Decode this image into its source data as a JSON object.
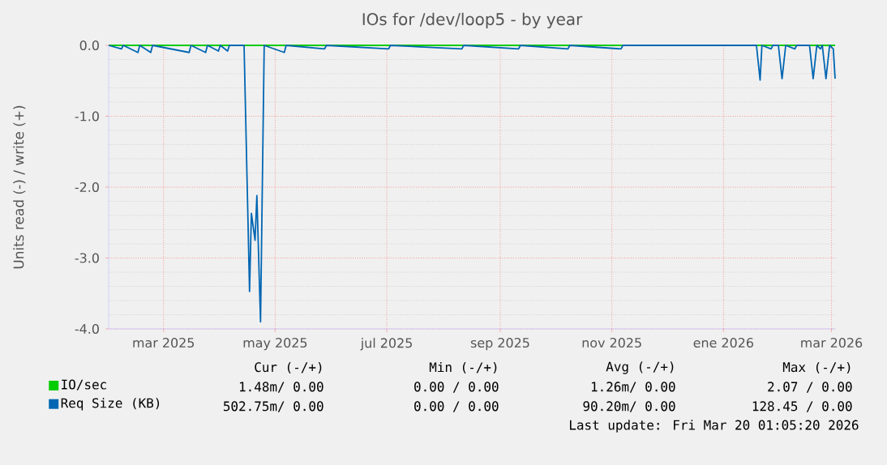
{
  "chart_data": {
    "type": "line",
    "title": "IOs for /dev/loop5 - by year",
    "ylabel": "Units read (-) / write (+)",
    "xlim": [
      "2025-01-30",
      "2026-03-03"
    ],
    "xticks": [
      {
        "value": "2025-03-01",
        "label": "mar 2025"
      },
      {
        "value": "2025-05-01",
        "label": "may 2025"
      },
      {
        "value": "2025-07-01",
        "label": "jul 2025"
      },
      {
        "value": "2025-09-01",
        "label": "sep 2025"
      },
      {
        "value": "2025-11-01",
        "label": "nov 2025"
      },
      {
        "value": "2026-01-01",
        "label": "ene 2026"
      },
      {
        "value": "2026-03-01",
        "label": "mar 2026"
      }
    ],
    "ylim": [
      -4,
      0
    ],
    "yticks": [
      {
        "value": -4,
        "label": "-4.0"
      },
      {
        "value": -3,
        "label": "-3.0"
      },
      {
        "value": -2,
        "label": "-2.0"
      },
      {
        "value": -1,
        "label": "-1.0"
      },
      {
        "value": 0,
        "label": "0.0"
      }
    ],
    "grid": true,
    "legend": "bottom",
    "marker": "none",
    "series": [
      {
        "name": "IO/sec",
        "color": "#00cc00",
        "x": [
          "2025-01-30",
          "2026-03-03"
        ],
        "values": [
          0,
          0
        ]
      },
      {
        "name": "Req Size (KB)",
        "color": "#0066b3",
        "x": [
          "2025-01-30",
          "2025-02-06",
          "2025-02-07",
          "2025-02-15",
          "2025-02-16",
          "2025-02-22",
          "2025-02-23",
          "2025-03-15",
          "2025-03-16",
          "2025-03-24",
          "2025-03-25",
          "2025-03-31",
          "2025-04-01",
          "2025-04-05",
          "2025-04-06",
          "2025-04-14",
          "2025-04-17",
          "2025-04-18",
          "2025-04-20",
          "2025-04-21",
          "2025-04-23",
          "2025-04-25",
          "2025-05-06",
          "2025-05-07",
          "2025-05-28",
          "2025-05-29",
          "2025-07-02",
          "2025-07-03",
          "2025-08-11",
          "2025-08-12",
          "2025-09-11",
          "2025-09-12",
          "2025-10-08",
          "2025-10-09",
          "2025-11-06",
          "2025-11-07",
          "2026-01-19",
          "2026-01-21",
          "2026-01-22",
          "2026-01-27",
          "2026-01-28",
          "2026-01-31",
          "2026-02-02",
          "2026-02-04",
          "2026-02-09",
          "2026-02-10",
          "2026-02-17",
          "2026-02-19",
          "2026-02-21",
          "2026-02-23",
          "2026-02-24",
          "2026-02-26",
          "2026-02-28",
          "2026-03-02",
          "2026-03-03"
        ],
        "values": [
          0,
          -0.05,
          0,
          -0.1,
          0,
          -0.1,
          0,
          -0.1,
          0,
          -0.1,
          0,
          -0.08,
          0,
          -0.08,
          0,
          0,
          -3.47,
          -2.37,
          -2.75,
          -2.12,
          -3.9,
          0,
          -0.1,
          0,
          -0.05,
          0,
          -0.05,
          0,
          -0.05,
          0,
          -0.05,
          0,
          -0.05,
          0,
          -0.05,
          0,
          0,
          -0.49,
          0,
          -0.05,
          0,
          0,
          -0.47,
          0,
          -0.05,
          0,
          0,
          -0.47,
          0,
          -0.05,
          0,
          -0.47,
          0,
          -0.05,
          -0.47
        ]
      }
    ],
    "annotations": [
      "Cur (-/+)",
      "Min (-/+)",
      "Avg (-/+)",
      "Max (-/+)",
      "1.48m/ 0.00",
      "0.00 / 0.00",
      "1.26m/ 0.00",
      "2.07 / 0.00",
      "502.75m/ 0.00",
      "0.00 / 0.00",
      "90.20m/ 0.00",
      "128.45 / 0.00",
      "Last update: Fri Mar 20 01:05:20 2026"
    ]
  }
}
